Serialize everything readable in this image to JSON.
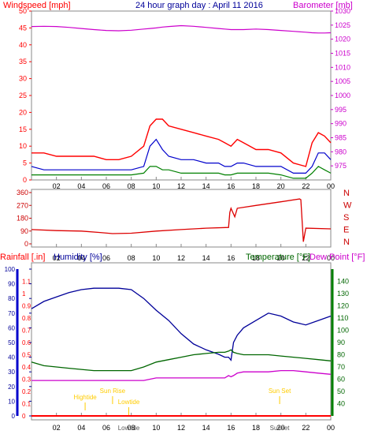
{
  "colors": {
    "wind": "#ff0000",
    "wind_avg": "#0000cc",
    "wind_min": "#008000",
    "barometer": "#cc00cc",
    "direction": "#dd0000",
    "humidity": "#000099",
    "temperature": "#006600",
    "dewpoint": "#cc00cc",
    "rainfall": "#ff0000",
    "sun": "#ffcc00",
    "tide": "#ffcc00",
    "frame": "#888888",
    "tick_label": "#000000",
    "blue_axis": "#0000cc",
    "green_axis": "#008000"
  },
  "time_ticks": [
    "02",
    "04",
    "06",
    "08",
    "10",
    "12",
    "14",
    "16",
    "18",
    "20",
    "22",
    "00"
  ],
  "chart_data": [
    {
      "type": "line",
      "title": "24 hour graph day : April 11 2016",
      "ylabel_left": "Windspeed [mph]",
      "ylabel_right": "Barometer [mb]",
      "ylim_left": [
        0,
        50
      ],
      "ylim_right": [
        970,
        1030
      ],
      "left_ticks": [
        "0",
        "5",
        "10",
        "15",
        "20",
        "25",
        "30",
        "35",
        "40",
        "45",
        "50"
      ],
      "right_ticks": [
        "975",
        "980",
        "985",
        "990",
        "995",
        "1000",
        "1005",
        "1010",
        "1015",
        "1020",
        "1025",
        "1030"
      ],
      "x_hours": [
        0,
        1,
        2,
        3,
        4,
        5,
        6,
        7,
        8,
        9,
        9.5,
        10,
        10.5,
        11,
        12,
        13,
        14,
        15,
        15.5,
        16,
        16.5,
        17,
        18,
        19,
        20,
        21,
        22,
        22.5,
        23,
        23.5,
        24
      ],
      "series": [
        {
          "key": "barometer",
          "axis": "right",
          "values": [
            1024.5,
            1024.6,
            1024.5,
            1024.2,
            1023.8,
            1023.4,
            1023.1,
            1023.0,
            1023.2,
            1023.6,
            1023.8,
            1024.0,
            1024.3,
            1024.5,
            1024.8,
            1024.6,
            1024.2,
            1023.8,
            1023.6,
            1023.4,
            1023.4,
            1023.4,
            1023.6,
            1023.4,
            1023.1,
            1022.8,
            1022.5,
            1022.3,
            1022.2,
            1022.2,
            1022.3
          ]
        },
        {
          "key": "wind",
          "axis": "left",
          "values": [
            8,
            8,
            7,
            7,
            7,
            7,
            6,
            6,
            7,
            10,
            16,
            18,
            18,
            16,
            15,
            14,
            13,
            12,
            11,
            10,
            12,
            11,
            9,
            9,
            8,
            5,
            4,
            11,
            14,
            13,
            11
          ]
        },
        {
          "key": "wind_avg",
          "axis": "left",
          "values": [
            4,
            3,
            3,
            3,
            3,
            3,
            3,
            3,
            3,
            4,
            10,
            12,
            9,
            7,
            6,
            6,
            5,
            5,
            4,
            4,
            5,
            5,
            4,
            4,
            4,
            2,
            2,
            4,
            8,
            8,
            6
          ]
        },
        {
          "key": "wind_min",
          "axis": "left",
          "values": [
            1.5,
            1.5,
            1.5,
            1.5,
            1.5,
            1.5,
            1.5,
            1.5,
            1.5,
            2,
            4,
            4,
            3,
            3,
            2,
            2,
            2,
            2,
            1.5,
            1.5,
            2,
            2,
            2,
            2,
            1.5,
            0.5,
            0.5,
            2,
            4,
            3,
            2
          ]
        }
      ]
    },
    {
      "type": "line",
      "ylim": [
        0,
        360
      ],
      "ticks": [
        "360",
        "270",
        "180",
        "90",
        "0"
      ],
      "compass_labels": [
        "N",
        "W",
        "S",
        "E",
        "N"
      ],
      "x_hours": [
        0,
        2,
        4,
        5.5,
        6.5,
        8,
        10,
        12,
        14,
        15.8,
        15.9,
        16.0,
        16.3,
        16.5,
        18,
        20,
        21.5,
        21.6,
        21.8,
        22,
        24
      ],
      "series": [
        {
          "key": "direction",
          "values": [
            100,
            93,
            90,
            80,
            72,
            75,
            90,
            100,
            110,
            115,
            220,
            250,
            190,
            250,
            270,
            295,
            315,
            310,
            15,
            110,
            105
          ]
        }
      ]
    },
    {
      "type": "line",
      "ylabel_rain": "Rainfall [.in]",
      "ylabel_humidity": "Humidity [%]",
      "ylabel_temperature": "Temperature [°F]",
      "ylabel_dewpoint": "Dew Point [°F]",
      "ylim_rain": [
        0,
        1.2
      ],
      "ylim_humidity": [
        0,
        100
      ],
      "ylim_temperature": [
        30,
        150
      ],
      "rain_ticks": [
        "0",
        "0.1",
        "0.2",
        "0.3",
        "0.4",
        "0.5",
        "0.6",
        "0.7",
        "0.8",
        "0.9",
        "1",
        "1.1"
      ],
      "humidity_ticks": [
        "0",
        "10",
        "20",
        "30",
        "40",
        "50",
        "60",
        "70",
        "80",
        "90",
        "100"
      ],
      "temperature_ticks": [
        "40",
        "50",
        "60",
        "70",
        "80",
        "90",
        "100",
        "110",
        "120",
        "130",
        "140"
      ],
      "x_hours": [
        0,
        1,
        2,
        3,
        4,
        5,
        6,
        7,
        8,
        9,
        10,
        11,
        12,
        13,
        14,
        15,
        15.5,
        15.8,
        16,
        16.2,
        16.5,
        17,
        18,
        19,
        20,
        21,
        22,
        23,
        24
      ],
      "series": [
        {
          "key": "humidity",
          "values": [
            73,
            78,
            81,
            84,
            86,
            87,
            87,
            87,
            86,
            80,
            72,
            65,
            56,
            49,
            45,
            42,
            40,
            40,
            38,
            50,
            55,
            60,
            65,
            70,
            68,
            64,
            62,
            65,
            68
          ]
        },
        {
          "key": "temperature",
          "values": [
            74,
            71,
            70,
            69,
            68,
            67,
            67,
            67,
            67,
            70,
            74,
            76,
            78,
            80,
            81,
            82,
            82,
            83,
            84,
            82,
            81,
            80,
            80,
            80,
            79,
            78,
            77,
            76,
            75
          ]
        },
        {
          "key": "dewpoint",
          "values": [
            59,
            59,
            59,
            59,
            59,
            59,
            59,
            59,
            59,
            59,
            61,
            61,
            61,
            61,
            61,
            61,
            61,
            63,
            62,
            63,
            65,
            66,
            66,
            66,
            67,
            67,
            66,
            65,
            64
          ]
        },
        {
          "key": "rainfall",
          "values": [
            0,
            0,
            0,
            0,
            0,
            0,
            0,
            0,
            0,
            0,
            0,
            0,
            0,
            0,
            0,
            0,
            0,
            0,
            0,
            0,
            0,
            0,
            0,
            0,
            0,
            0,
            0,
            0,
            0
          ]
        }
      ],
      "events": [
        {
          "label": "Hightide",
          "hour": 4.3
        },
        {
          "label": "Sun Rise",
          "hour": 6.5
        },
        {
          "label": "Lowtide",
          "hour": 7.8
        },
        {
          "label": "Sun Set",
          "hour": 19.9
        }
      ],
      "bottom_events": [
        {
          "label": "Lowtide",
          "hour": 7.8
        },
        {
          "label": "Sunset",
          "hour": 19.9
        }
      ]
    }
  ]
}
